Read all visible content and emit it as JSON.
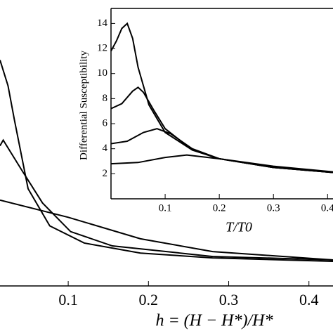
{
  "chart_data": [
    {
      "type": "line",
      "xlabel": "h = (H − H*)/H*",
      "xlim": [
        0.015,
        0.43
      ],
      "ylim": [
        0,
        1
      ],
      "xticks": [
        0.1,
        0.2,
        0.3,
        0.4
      ],
      "series": [
        {
          "color": "#000000",
          "x": [
            0.015,
            0.025,
            0.033,
            0.05,
            0.077,
            0.12,
            0.19,
            0.28,
            0.43
          ],
          "values": [
            0.79,
            0.7,
            0.58,
            0.34,
            0.21,
            0.15,
            0.115,
            0.098,
            0.086
          ]
        },
        {
          "color": "#000000",
          "x": [
            0.015,
            0.019,
            0.041,
            0.068,
            0.103,
            0.155,
            0.28,
            0.43
          ],
          "values": [
            0.49,
            0.51,
            0.41,
            0.29,
            0.19,
            0.14,
            0.103,
            0.091
          ]
        },
        {
          "color": "#000000",
          "x": [
            0.015,
            0.1,
            0.19,
            0.28,
            0.43
          ],
          "values": [
            0.3,
            0.24,
            0.165,
            0.12,
            0.091
          ]
        }
      ]
    },
    {
      "type": "line",
      "xlabel": "T/T0",
      "ylabel": "Differential Susceptibility",
      "xlim": [
        0,
        0.41
      ],
      "ylim": [
        0,
        15.2
      ],
      "xticks": [
        0.1,
        0.2,
        0.3,
        0.4
      ],
      "yticks": [
        2,
        4,
        6,
        8,
        10,
        12,
        14
      ],
      "series": [
        {
          "color": "#000000",
          "x": [
            0,
            0.01,
            0.02,
            0.03,
            0.04,
            0.05,
            0.07,
            0.1,
            0.15,
            0.2,
            0.3,
            0.41
          ],
          "values": [
            11.8,
            12.6,
            13.6,
            14.0,
            12.8,
            10.5,
            7.5,
            5.3,
            3.9,
            3.2,
            2.5,
            2.1
          ]
        },
        {
          "color": "#000000",
          "x": [
            0,
            0.02,
            0.04,
            0.05,
            0.06,
            0.08,
            0.1,
            0.15,
            0.2,
            0.3,
            0.41
          ],
          "values": [
            7.2,
            7.6,
            8.6,
            8.9,
            8.5,
            7.0,
            5.6,
            3.9,
            3.2,
            2.5,
            2.1
          ]
        },
        {
          "color": "#000000",
          "x": [
            0,
            0.03,
            0.06,
            0.085,
            0.11,
            0.15,
            0.2,
            0.3,
            0.41
          ],
          "values": [
            4.4,
            4.6,
            5.3,
            5.6,
            5.2,
            4.0,
            3.2,
            2.5,
            2.1
          ]
        },
        {
          "color": "#000000",
          "x": [
            0,
            0.05,
            0.1,
            0.14,
            0.2,
            0.3,
            0.41
          ],
          "values": [
            2.8,
            2.9,
            3.3,
            3.5,
            3.2,
            2.6,
            2.15
          ]
        }
      ]
    }
  ]
}
